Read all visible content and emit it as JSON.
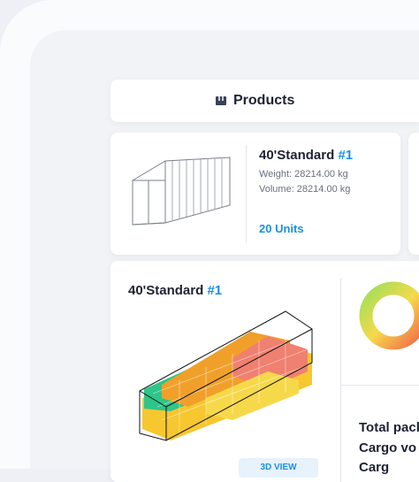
{
  "header": {
    "title": "Products"
  },
  "container_card": {
    "name": "40'Standard",
    "index": "#1",
    "weight": "Weight: 28214.00 kg",
    "volume": "Volume: 28214.00 kg",
    "units": "20 Units"
  },
  "loading_card": {
    "name": "40'Standard",
    "index": "#1",
    "button": "3D VIEW"
  },
  "summary": {
    "lines": [
      "Total pack",
      "Cargo vo",
      "Carg"
    ]
  }
}
